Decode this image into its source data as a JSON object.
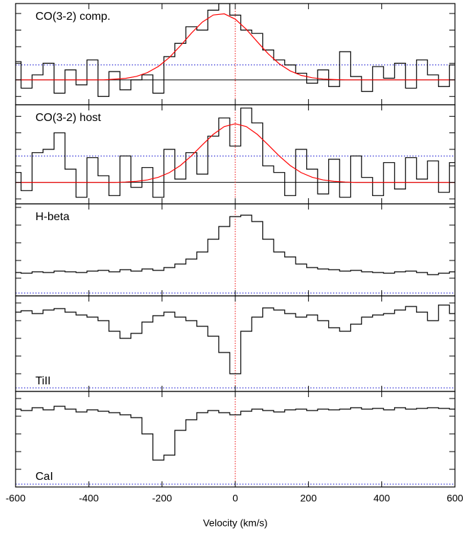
{
  "chart_data": [
    {
      "type": "step",
      "label": "CO(3-2) comp.",
      "label_position": "top",
      "x": [
        -600,
        -570,
        -540,
        -510,
        -480,
        -450,
        -420,
        -390,
        -360,
        -330,
        -300,
        -270,
        -240,
        -210,
        -180,
        -150,
        -120,
        -90,
        -60,
        -30,
        0,
        30,
        60,
        90,
        120,
        150,
        180,
        210,
        240,
        270,
        300,
        330,
        360,
        390,
        420,
        450,
        480,
        510,
        540,
        570,
        600
      ],
      "values": [
        1.1,
        -0.5,
        0.3,
        1.0,
        -0.8,
        0.6,
        -0.3,
        1.2,
        -1.0,
        0.5,
        -0.6,
        0.0,
        0.3,
        -0.8,
        1.4,
        2.2,
        3.2,
        3.0,
        4.2,
        4.6,
        3.9,
        3.0,
        2.8,
        1.8,
        1.2,
        0.9,
        0.4,
        -0.2,
        0.6,
        -0.4,
        1.7,
        0.2,
        -0.7,
        0.8,
        0.1,
        1.0,
        -0.5,
        1.2,
        0.3,
        -0.4,
        0.9
      ],
      "color": "#000000",
      "fit_values": [
        0,
        0,
        0,
        0,
        0,
        0,
        0,
        0,
        0,
        0.04,
        0.09,
        0.21,
        0.44,
        0.81,
        1.35,
        2.05,
        2.81,
        3.48,
        3.91,
        3.98,
        3.66,
        3.05,
        2.3,
        1.57,
        0.97,
        0.54,
        0.27,
        0.13,
        0.05,
        0.02,
        0,
        0,
        0,
        0,
        0,
        0,
        0,
        0,
        0,
        0,
        0
      ],
      "fit_color": "#ff0000",
      "noise": 0.9,
      "noise_color": "#0000cc",
      "xlim": [
        -600,
        600
      ],
      "xticks": [
        -600,
        -400,
        -200,
        0,
        200,
        400,
        600
      ],
      "ylim": [
        -1.5,
        4.6
      ],
      "yticks": [
        -1,
        0,
        1,
        2,
        3,
        4
      ]
    },
    {
      "type": "step",
      "label": "CO(3-2) host",
      "label_position": "top",
      "x": [
        -600,
        -570,
        -540,
        -510,
        -480,
        -450,
        -420,
        -390,
        -360,
        -330,
        -300,
        -270,
        -240,
        -210,
        -180,
        -150,
        -120,
        -90,
        -60,
        -30,
        0,
        30,
        60,
        90,
        120,
        150,
        180,
        210,
        240,
        270,
        300,
        330,
        360,
        390,
        420,
        450,
        480,
        510,
        540,
        570,
        600
      ],
      "values": [
        0.6,
        -0.5,
        1.8,
        2.0,
        3.0,
        0.8,
        -0.9,
        1.5,
        0.4,
        -0.8,
        1.6,
        -0.3,
        0.9,
        -0.9,
        2.0,
        0.2,
        1.8,
        0.5,
        2.8,
        3.9,
        2.2,
        4.5,
        3.6,
        1.0,
        0.6,
        -0.8,
        2.0,
        0.8,
        -0.7,
        1.4,
        -0.9,
        1.6,
        0.3,
        -0.8,
        1.2,
        -0.4,
        1.5,
        0.2,
        1.3,
        -0.6,
        1.2
      ],
      "color": "#000000",
      "fit_values": [
        0,
        0,
        0,
        0,
        0,
        0,
        0,
        0,
        0,
        0,
        0.02,
        0.06,
        0.15,
        0.31,
        0.59,
        1.02,
        1.6,
        2.27,
        2.91,
        3.38,
        3.55,
        3.38,
        2.91,
        2.27,
        1.6,
        1.02,
        0.59,
        0.31,
        0.15,
        0.06,
        0.02,
        0,
        0,
        0,
        0,
        0,
        0,
        0,
        0,
        0,
        0
      ],
      "fit_color": "#ff0000",
      "noise": 1.6,
      "noise_color": "#0000cc",
      "xlim": [
        -600,
        600
      ],
      "xticks": [
        -600,
        -400,
        -200,
        0,
        200,
        400,
        600
      ],
      "ylim": [
        -1.3,
        4.7
      ],
      "yticks": [
        -1,
        0,
        1,
        2,
        3,
        4
      ]
    },
    {
      "type": "step",
      "label": "H-beta",
      "label_position": "top",
      "x": [
        -600,
        -570,
        -540,
        -510,
        -480,
        -450,
        -420,
        -390,
        -360,
        -330,
        -300,
        -270,
        -240,
        -210,
        -180,
        -150,
        -120,
        -90,
        -60,
        -30,
        0,
        30,
        60,
        90,
        120,
        150,
        180,
        210,
        240,
        270,
        300,
        330,
        360,
        390,
        420,
        450,
        480,
        510,
        540,
        570,
        600
      ],
      "values": [
        0.33,
        0.32,
        0.34,
        0.33,
        0.35,
        0.34,
        0.33,
        0.35,
        0.36,
        0.34,
        0.37,
        0.35,
        0.38,
        0.36,
        0.4,
        0.45,
        0.52,
        0.62,
        0.8,
        0.98,
        1.12,
        1.14,
        1.05,
        0.8,
        0.62,
        0.55,
        0.45,
        0.4,
        0.38,
        0.37,
        0.35,
        0.36,
        0.34,
        0.33,
        0.32,
        0.34,
        0.35,
        0.33,
        0.3,
        0.32,
        0.34
      ],
      "color": "#000000",
      "noise": 0.04,
      "noise_color": "#0000cc",
      "xlim": [
        -600,
        600
      ],
      "xticks": [
        -600,
        -400,
        -200,
        0,
        200,
        400,
        600
      ],
      "ylim": [
        0,
        1.3
      ],
      "yticks": [
        0.25,
        0.5,
        0.75,
        1,
        1.25
      ]
    },
    {
      "type": "step",
      "label": "TiII",
      "label_position": "bottom",
      "x": [
        -600,
        -570,
        -540,
        -510,
        -480,
        -450,
        -420,
        -390,
        -360,
        -330,
        -300,
        -270,
        -240,
        -210,
        -180,
        -150,
        -120,
        -90,
        -60,
        -30,
        0,
        30,
        60,
        90,
        120,
        150,
        180,
        210,
        240,
        270,
        300,
        330,
        360,
        390,
        420,
        450,
        480,
        510,
        540,
        570,
        600
      ],
      "values": [
        1.12,
        1.14,
        1.1,
        1.15,
        1.17,
        1.12,
        1.08,
        1.05,
        1.0,
        0.85,
        0.75,
        0.82,
        0.98,
        1.07,
        1.12,
        1.05,
        1.0,
        0.92,
        0.78,
        0.55,
        0.25,
        0.85,
        1.05,
        1.18,
        1.15,
        1.1,
        1.05,
        1.08,
        1.0,
        0.9,
        0.85,
        0.95,
        1.05,
        1.08,
        1.1,
        1.15,
        1.2,
        1.12,
        1.0,
        1.22,
        1.1
      ],
      "color": "#000000",
      "noise": 0.05,
      "noise_color": "#0000cc",
      "xlim": [
        -600,
        600
      ],
      "xticks": [
        -600,
        -400,
        -200,
        0,
        200,
        400,
        600
      ],
      "ylim": [
        0,
        1.35
      ],
      "yticks": [
        0.25,
        0.5,
        0.75,
        1,
        1.25
      ]
    },
    {
      "type": "step",
      "label": "CaI",
      "label_position": "bottom",
      "xlabel": "Velocity (km/s)",
      "x": [
        -600,
        -570,
        -540,
        -510,
        -480,
        -450,
        -420,
        -390,
        -360,
        -330,
        -300,
        -270,
        -240,
        -210,
        -180,
        -150,
        -120,
        -90,
        -60,
        -30,
        0,
        30,
        60,
        90,
        120,
        150,
        180,
        210,
        240,
        270,
        300,
        330,
        360,
        390,
        420,
        450,
        480,
        510,
        540,
        570,
        600
      ],
      "values": [
        1.1,
        1.08,
        1.12,
        1.09,
        1.14,
        1.1,
        1.06,
        1.09,
        1.07,
        1.05,
        1.02,
        0.98,
        0.75,
        0.38,
        0.45,
        0.8,
        0.95,
        1.05,
        1.08,
        1.05,
        1.02,
        1.07,
        1.1,
        1.08,
        1.06,
        1.09,
        1.1,
        1.08,
        1.1,
        1.09,
        1.1,
        1.12,
        1.1,
        1.11,
        1.09,
        1.12,
        1.1,
        1.11,
        1.12,
        1.11,
        1.1
      ],
      "color": "#000000",
      "noise": 0.04,
      "noise_color": "#0000cc",
      "xlim": [
        -600,
        600
      ],
      "xticks": [
        -600,
        -400,
        -200,
        0,
        200,
        400,
        600
      ],
      "ylim": [
        0,
        1.35
      ],
      "yticks": [
        0.25,
        0.5,
        0.75,
        1,
        1.25
      ]
    }
  ]
}
